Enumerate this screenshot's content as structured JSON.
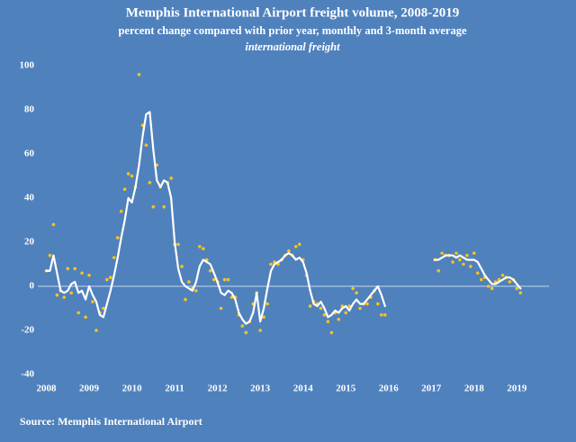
{
  "chart_data": {
    "type": "line",
    "title": "Memphis International Airport freight volume, 2008-2019",
    "subtitle": "percent change compared with prior year, monthly and 3-month average",
    "subtitle2": "international freight",
    "source": "Source: Memphis International Airport",
    "x": [
      2008,
      2008.083,
      2008.167,
      2008.25,
      2008.333,
      2008.417,
      2008.5,
      2008.583,
      2008.667,
      2008.75,
      2008.833,
      2008.917,
      2009,
      2009.083,
      2009.167,
      2009.25,
      2009.333,
      2009.417,
      2009.5,
      2009.583,
      2009.667,
      2009.75,
      2009.833,
      2009.917,
      2010,
      2010.083,
      2010.167,
      2010.25,
      2010.333,
      2010.417,
      2010.5,
      2010.583,
      2010.667,
      2010.75,
      2010.833,
      2010.917,
      2011,
      2011.083,
      2011.167,
      2011.25,
      2011.333,
      2011.417,
      2011.5,
      2011.583,
      2011.667,
      2011.75,
      2011.833,
      2011.917,
      2012,
      2012.083,
      2012.167,
      2012.25,
      2012.333,
      2012.417,
      2012.5,
      2012.583,
      2012.667,
      2012.75,
      2012.833,
      2012.917,
      2013,
      2013.083,
      2013.167,
      2013.25,
      2013.333,
      2013.417,
      2013.5,
      2013.583,
      2013.667,
      2013.75,
      2013.833,
      2013.917,
      2014,
      2014.083,
      2014.167,
      2014.25,
      2014.333,
      2014.417,
      2014.5,
      2014.583,
      2014.667,
      2014.75,
      2014.833,
      2014.917,
      2015,
      2015.083,
      2015.167,
      2015.25,
      2015.333,
      2015.417,
      2015.5,
      2015.583,
      2015.667,
      2015.75,
      2015.833,
      2015.917,
      2016.5,
      2017.083,
      2017.167,
      2017.25,
      2017.333,
      2017.417,
      2017.5,
      2017.583,
      2017.667,
      2017.75,
      2017.833,
      2017.917,
      2018,
      2018.083,
      2018.167,
      2018.25,
      2018.333,
      2018.417,
      2018.5,
      2018.583,
      2018.667,
      2018.75,
      2018.833,
      2018.917,
      2019,
      2019.083
    ],
    "series": [
      {
        "kind": "scatter",
        "color": "#f5c518",
        "values": [
          7,
          14,
          28,
          -4,
          -2,
          -5,
          8,
          -3,
          8,
          -12,
          6,
          -14,
          5,
          -7,
          -20,
          -12,
          -10,
          3,
          4,
          13,
          22,
          34,
          44,
          51,
          50,
          45,
          96,
          73,
          64,
          47,
          36,
          55,
          45,
          36,
          47,
          49,
          19,
          19,
          9,
          -6,
          2,
          -1,
          -2,
          18,
          17,
          12,
          7,
          3,
          2,
          -10,
          3,
          3,
          -5,
          -5,
          -13,
          -18,
          -21,
          -16,
          -8,
          -3,
          -20,
          -14,
          -8,
          10,
          11,
          10,
          12,
          14,
          16,
          14,
          18,
          19,
          12,
          5,
          -9,
          -7,
          -8,
          -10,
          -13,
          -16,
          -21,
          -12,
          -15,
          -9,
          -12,
          -9,
          -1,
          -3,
          -10,
          -8,
          -8,
          -5,
          -2,
          -8,
          -13,
          -13,
          null,
          12,
          7,
          15,
          14,
          14,
          11,
          15,
          12,
          10,
          14,
          9,
          15,
          6,
          3,
          4,
          0,
          -1,
          2,
          3,
          5,
          4,
          2,
          3,
          -1,
          -3
        ]
      },
      {
        "kind": "line",
        "color": "#ffffff",
        "values": [
          7,
          7,
          14,
          6,
          -2,
          -3,
          -2,
          1,
          2,
          -3,
          -2,
          -6,
          0,
          -4,
          -7,
          -13,
          -14,
          -8,
          -2,
          5,
          13,
          22,
          30,
          40,
          38,
          45,
          55,
          68,
          78,
          79,
          62,
          48,
          45,
          48,
          47,
          40,
          20,
          8,
          2,
          0,
          -1,
          -2,
          2,
          9,
          12,
          11,
          10,
          6,
          2,
          -3,
          -4,
          -2,
          -3,
          -6,
          -12,
          -15,
          -17,
          -16,
          -12,
          -3,
          -16,
          -10,
          -1,
          7,
          10,
          11,
          12,
          14,
          15,
          14,
          12,
          13,
          11,
          6,
          -2,
          -8,
          -9,
          -7,
          -10,
          -14,
          -13,
          -11,
          -12,
          -10,
          -9,
          -11,
          -8,
          -6,
          -8,
          -8,
          -6,
          -4,
          -2,
          0,
          -4,
          -9,
          null,
          12,
          12,
          13,
          14,
          14,
          14,
          13,
          14,
          13,
          12,
          12,
          12,
          11,
          8,
          5,
          3,
          1,
          1,
          2,
          3,
          4,
          4,
          3,
          1,
          -1
        ]
      }
    ],
    "xlim": [
      2007.8,
      2019.75
    ],
    "xticks": [
      2008,
      2009,
      2010,
      2011,
      2012,
      2013,
      2014,
      2015,
      2016,
      2017,
      2018,
      2019
    ],
    "ylim": [
      -40,
      100
    ],
    "yticks": [
      100,
      80,
      60,
      40,
      20,
      0,
      -20,
      -40
    ],
    "grid": false,
    "zero_line": true
  }
}
